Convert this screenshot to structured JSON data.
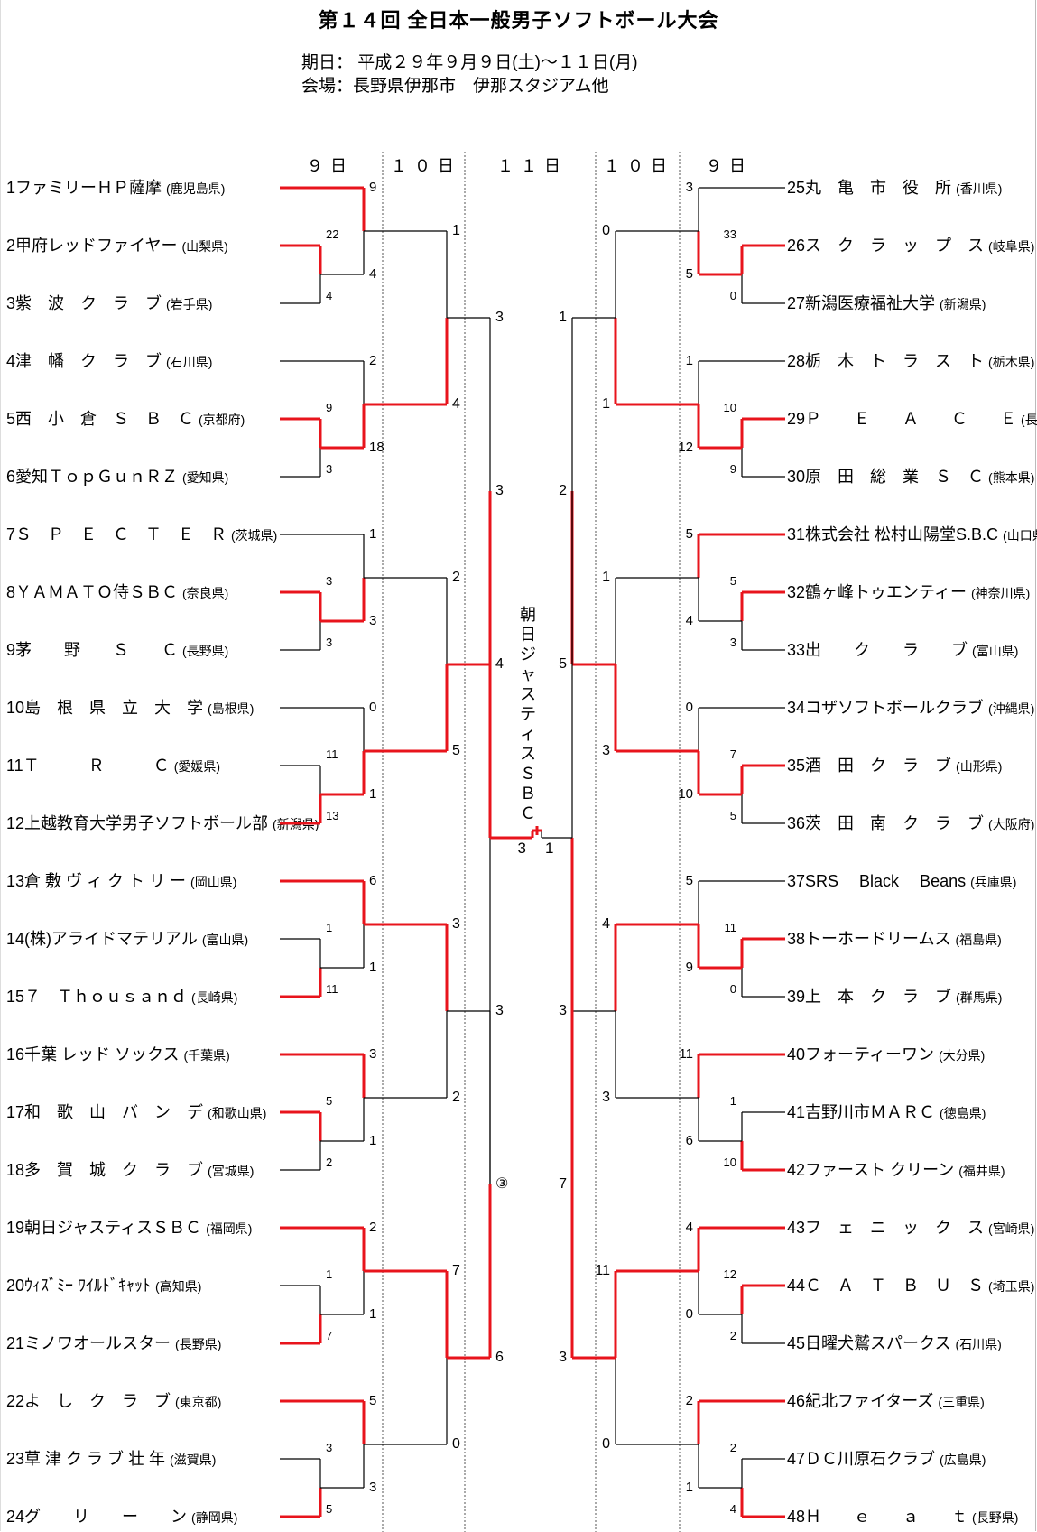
{
  "title": "第１４回 全日本一般男子ソフトボール大会",
  "date_line": "期日： 平成２９年９月９日(土)～１１日(月)",
  "venue_line": "会場：長野県伊那市　伊那スタジアム他",
  "day_headers": [
    "９日",
    "１０日",
    "１１日",
    "１０日",
    "９日"
  ],
  "champion": "朝日ジャスティスＳＢＣ",
  "final": {
    "left_score": "3",
    "right_score": "1"
  },
  "third_place_mark": "③",
  "colors": {
    "winner_line": "#e8141c",
    "loser_line": "#000000",
    "divider": "#555555"
  },
  "left_teams": [
    {
      "num": "1",
      "name": "ファミリーＨＰ薩摩",
      "pref": "(鹿児島県)"
    },
    {
      "num": "2",
      "name": "甲府レッドファイヤー",
      "pref": "(山梨県)"
    },
    {
      "num": "3",
      "name": "紫　波　ク　ラ　ブ",
      "pref": "(岩手県)"
    },
    {
      "num": "4",
      "name": "津　幡　ク　ラ　ブ",
      "pref": "(石川県)"
    },
    {
      "num": "5",
      "name": "西　小　倉　Ｓ　Ｂ　Ｃ",
      "pref": "(京都府)"
    },
    {
      "num": "6",
      "name": "愛知ＴｏｐＧｕｎＲＺ",
      "pref": "(愛知県)"
    },
    {
      "num": "7",
      "name": "Ｓ　Ｐ　Ｅ　Ｃ　Ｔ　Ｅ　Ｒ",
      "pref": "(茨城県)"
    },
    {
      "num": "8",
      "name": "ＹＡＭＡＴＯ侍ＳＢＣ",
      "pref": "(奈良県)"
    },
    {
      "num": "9",
      "name": "茅　　野　　Ｓ　　Ｃ",
      "pref": "(長野県)"
    },
    {
      "num": "10",
      "name": "島　根　県　立　大　学",
      "pref": "(島根県)"
    },
    {
      "num": "11",
      "name": "Ｔ　　　Ｒ　　　Ｃ",
      "pref": "(愛媛県)"
    },
    {
      "num": "12",
      "name": "上越教育大学男子ソフトボール部",
      "pref": "(新潟県)"
    },
    {
      "num": "13",
      "name": "倉 敷 ヴ ィ ク ト リ ー",
      "pref": "(岡山県)"
    },
    {
      "num": "14",
      "name": "(株)アライドマテリアル",
      "pref": "(富山県)"
    },
    {
      "num": "15",
      "name": "７　Ｔｈｏｕｓａｎｄ",
      "pref": "(長崎県)"
    },
    {
      "num": "16",
      "name": "千葉 レッド ソックス",
      "pref": "(千葉県)"
    },
    {
      "num": "17",
      "name": "和　歌　山　バ　ン　デ",
      "pref": "(和歌山県)"
    },
    {
      "num": "18",
      "name": "多　賀　城　ク　ラ　ブ",
      "pref": "(宮城県)"
    },
    {
      "num": "19",
      "name": "朝日ジャスティスＳＢＣ",
      "pref": "(福岡県)"
    },
    {
      "num": "20",
      "name": "ｳｨｽﾞﾐｰ ﾜｲﾙﾄﾞｷｬｯﾄ",
      "pref": "(高知県)"
    },
    {
      "num": "21",
      "name": "ミノワオールスター",
      "pref": "(長野県)"
    },
    {
      "num": "22",
      "name": "よ　し　ク　ラ　ブ",
      "pref": "(東京都)"
    },
    {
      "num": "23",
      "name": "草 津 ク ラ ブ 壮 年",
      "pref": "(滋賀県)"
    },
    {
      "num": "24",
      "name": "グ　　リ　　ー　　ン",
      "pref": "(静岡県)"
    }
  ],
  "right_teams": [
    {
      "num": "25",
      "name": "丸　亀　市　役　所",
      "pref": "(香川県)"
    },
    {
      "num": "26",
      "name": "ス　ク　ラ　ッ　プ　ス",
      "pref": "(岐阜県)"
    },
    {
      "num": "27",
      "name": "新潟医療福祉大学",
      "pref": "(新潟県)"
    },
    {
      "num": "28",
      "name": "栃　木　ト　ラ　ス　ト",
      "pref": "(栃木県)"
    },
    {
      "num": "29",
      "name": "Ｐ　　Ｅ　　Ａ　　Ｃ　　Ｅ",
      "pref": "(長野県)"
    },
    {
      "num": "30",
      "name": "原　田　総　業　Ｓ　Ｃ",
      "pref": "(熊本県)"
    },
    {
      "num": "31",
      "name": "株式会社 松村山陽堂S.B.C",
      "pref": "(山口県)"
    },
    {
      "num": "32",
      "name": "鶴ヶ峰トゥエンティー",
      "pref": "(神奈川県)"
    },
    {
      "num": "33",
      "name": "出　　ク　　ラ　　ブ",
      "pref": "(富山県)"
    },
    {
      "num": "34",
      "name": "コザソフトボールクラブ",
      "pref": "(沖縄県)"
    },
    {
      "num": "35",
      "name": "酒　田　ク　ラ　ブ",
      "pref": "(山形県)"
    },
    {
      "num": "36",
      "name": "茨　田　南　ク　ラ　ブ",
      "pref": "(大阪府)"
    },
    {
      "num": "37",
      "name": "SRS　 Black　 Beans",
      "pref": "(兵庫県)"
    },
    {
      "num": "38",
      "name": "トーホードリームス",
      "pref": "(福島県)"
    },
    {
      "num": "39",
      "name": "上　本　ク　ラ　ブ",
      "pref": "(群馬県)"
    },
    {
      "num": "40",
      "name": "フォーティーワン",
      "pref": "(大分県)"
    },
    {
      "num": "41",
      "name": "吉野川市ＭＡＲＣ",
      "pref": "(徳島県)"
    },
    {
      "num": "42",
      "name": "ファースト クリーン",
      "pref": "(福井県)"
    },
    {
      "num": "43",
      "name": "フ　ェ　ニ　ッ　ク　ス",
      "pref": "(宮崎県)"
    },
    {
      "num": "44",
      "name": "Ｃ　Ａ　Ｔ　Ｂ　Ｕ　Ｓ",
      "pref": "(埼玉県)"
    },
    {
      "num": "45",
      "name": "日曜犬鷲スパークス",
      "pref": "(石川県)"
    },
    {
      "num": "46",
      "name": "紀北ファイターズ",
      "pref": "(三重県)"
    },
    {
      "num": "47",
      "name": "ＤＣ川原石クラブ",
      "pref": "(広島県)"
    },
    {
      "num": "48",
      "name": "Ｈ　　ｅ　　ａ　　ｔ",
      "pref": "(長野県)"
    }
  ],
  "left_scores": {
    "r1": [
      [
        "22",
        "4"
      ],
      [
        "9",
        "3"
      ],
      [
        "3",
        "3"
      ],
      [
        "11",
        "13"
      ],
      [
        "1",
        "11"
      ],
      [
        "5",
        "2"
      ],
      [
        "1",
        "7"
      ],
      [
        "3",
        "5"
      ]
    ],
    "r2": [
      [
        "9",
        "4"
      ],
      [
        "2",
        "18"
      ],
      [
        "1",
        "3"
      ],
      [
        "0",
        "1"
      ],
      [
        "6",
        "1"
      ],
      [
        "3",
        "1"
      ],
      [
        "2",
        "1"
      ],
      [
        "5",
        "3"
      ]
    ],
    "r3": [
      [
        "1",
        "4"
      ],
      [
        "2",
        "5"
      ],
      [
        "3",
        "2"
      ],
      [
        "7",
        "0"
      ]
    ],
    "r4": [
      [
        "3",
        "4"
      ],
      [
        "3",
        "6"
      ]
    ],
    "r5": [
      [
        "3",
        "③"
      ]
    ]
  },
  "right_scores": {
    "r1": [
      [
        "33",
        "0"
      ],
      [
        "10",
        "9"
      ],
      [
        "5",
        "3"
      ],
      [
        "7",
        "5"
      ],
      [
        "11",
        "0"
      ],
      [
        "1",
        "10"
      ],
      [
        "12",
        "2"
      ],
      [
        "2",
        "4"
      ]
    ],
    "r2": [
      [
        "3",
        "5"
      ],
      [
        "1",
        "12"
      ],
      [
        "5",
        "4"
      ],
      [
        "0",
        "10"
      ],
      [
        "5",
        "9"
      ],
      [
        "11",
        "6"
      ],
      [
        "4",
        "0"
      ],
      [
        "2",
        "1"
      ]
    ],
    "r3": [
      [
        "0",
        "1"
      ],
      [
        "1",
        "3"
      ],
      [
        "4",
        "3"
      ],
      [
        "11",
        "0"
      ]
    ],
    "r4": [
      [
        "1",
        "5"
      ],
      [
        "3",
        "3"
      ]
    ],
    "r5": [
      [
        "2",
        "7"
      ]
    ]
  }
}
